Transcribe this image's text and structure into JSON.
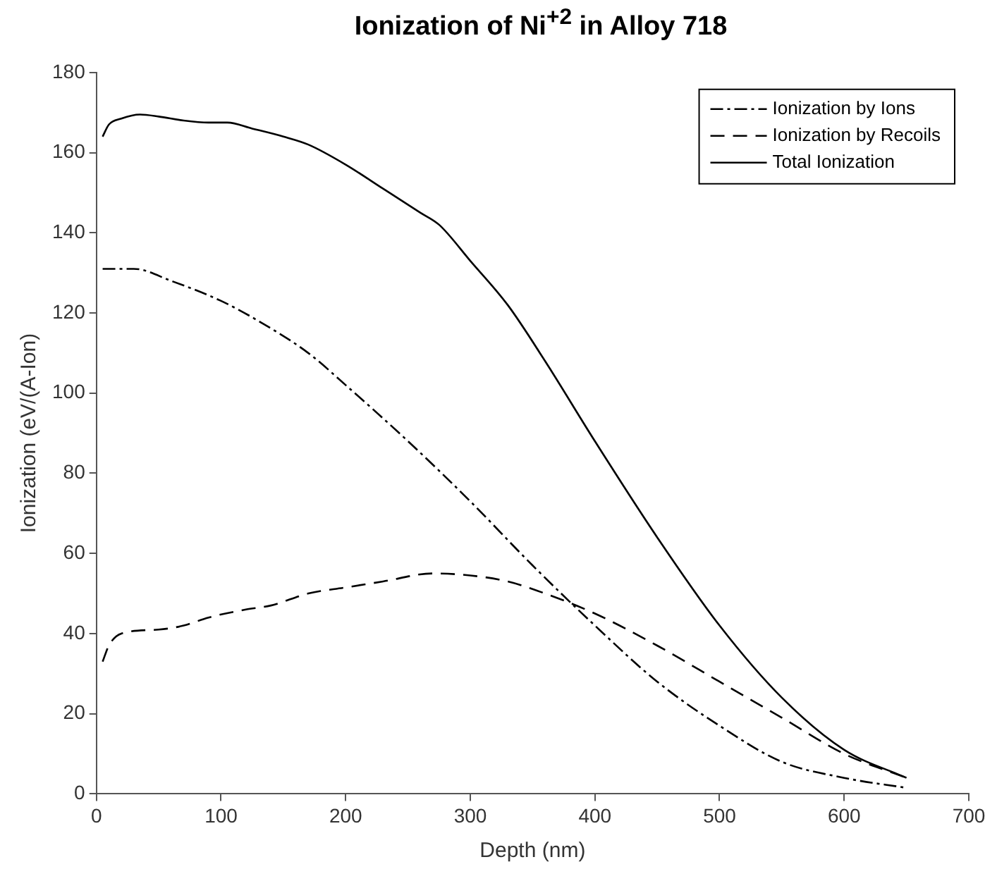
{
  "chart_data": {
    "type": "line",
    "title": "Ionization of Ni$^{+2}$ in Alloy 718",
    "xlabel": "Depth (nm)",
    "ylabel": "Ionization (eV/(A-Ion)",
    "xlim": [
      0,
      700
    ],
    "xticks": [
      0,
      100,
      200,
      300,
      400,
      500,
      600,
      700
    ],
    "ylim": [
      0,
      180
    ],
    "yticks": [
      0,
      20,
      40,
      60,
      80,
      100,
      120,
      140,
      160,
      180
    ],
    "grid": false,
    "legend": "top right",
    "marker": "none",
    "series": [
      {
        "name": "Ionization by Ions",
        "color": "#000000",
        "line_style": "dashdot",
        "x": [
          5,
          30,
          60,
          100,
          130,
          170,
          200,
          250,
          300,
          350,
          400,
          450,
          500,
          550,
          600,
          650
        ],
        "values": [
          131,
          131,
          128,
          123,
          118,
          110,
          102,
          88,
          73,
          57,
          42,
          28,
          17,
          8,
          4,
          1.5
        ]
      },
      {
        "name": "Ionization by Recoils",
        "color": "#000000",
        "line_style": "dashed",
        "x": [
          5,
          10,
          20,
          50,
          70,
          90,
          120,
          140,
          170,
          200,
          230,
          270,
          300,
          330,
          360,
          400,
          450,
          500,
          550,
          600,
          650
        ],
        "values": [
          33,
          37,
          40,
          41,
          42,
          44,
          46,
          47,
          50,
          51.5,
          53,
          55,
          54.5,
          53,
          50,
          45,
          37,
          28,
          19,
          10,
          4
        ]
      },
      {
        "name": "Total Ionization",
        "color": "#000000",
        "line_style": "solid",
        "x": [
          5,
          10,
          20,
          35,
          50,
          70,
          90,
          105,
          125,
          150,
          170,
          200,
          230,
          260,
          275,
          300,
          330,
          360,
          400,
          450,
          500,
          550,
          600,
          650
        ],
        "values": [
          164,
          167,
          168.5,
          169.5,
          169,
          168,
          167.5,
          167.5,
          166,
          164,
          162,
          157,
          151,
          145,
          142,
          133,
          122,
          108,
          88,
          64,
          42,
          24,
          11,
          4
        ]
      }
    ]
  }
}
